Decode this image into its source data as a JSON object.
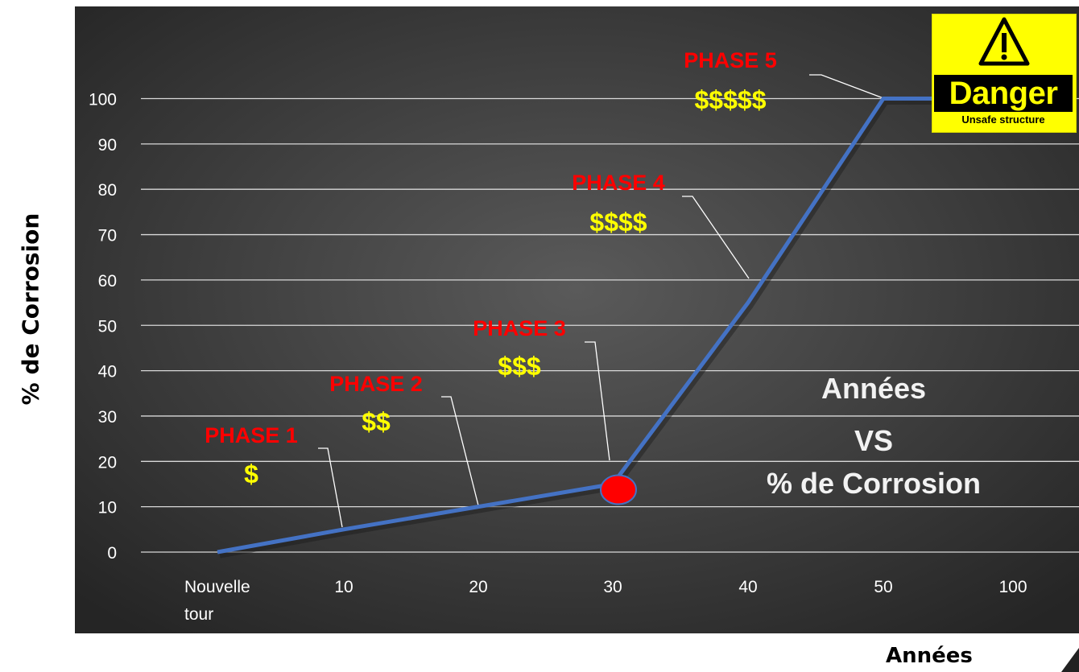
{
  "chart_data": {
    "type": "line",
    "title_lines": [
      "Années",
      "VS",
      "% de Corrosion"
    ],
    "xlabel": "Années",
    "ylabel": "% de Corrosion",
    "categories": [
      "Nouvelle tour",
      "10",
      "20",
      "30",
      "40",
      "50",
      "100"
    ],
    "yticks": [
      0,
      10,
      20,
      30,
      40,
      50,
      60,
      70,
      80,
      90,
      100
    ],
    "ylim": [
      0,
      100
    ],
    "grid": true,
    "series": [
      {
        "values": [
          0,
          5,
          10,
          15,
          55,
          100,
          100
        ]
      }
    ],
    "highlight_point": {
      "category": "30",
      "value": 15
    },
    "phases": [
      {
        "label": "PHASE 1",
        "cost": "$"
      },
      {
        "label": "PHASE 2",
        "cost": "$$"
      },
      {
        "label": "PHASE 3",
        "cost": "$$$"
      },
      {
        "label": "PHASE 4",
        "cost": "$$$$"
      },
      {
        "label": "PHASE 5",
        "cost": "$$$$$"
      }
    ],
    "colors": {
      "line": "#4472c4",
      "phase_label": "#ff0000",
      "cost_label": "#ffff00",
      "marker": "#ff0000",
      "background": "#3a3a3a"
    }
  },
  "sign": {
    "word": "Danger",
    "subtitle": "Unsafe structure",
    "icon": "warning-triangle-icon"
  }
}
